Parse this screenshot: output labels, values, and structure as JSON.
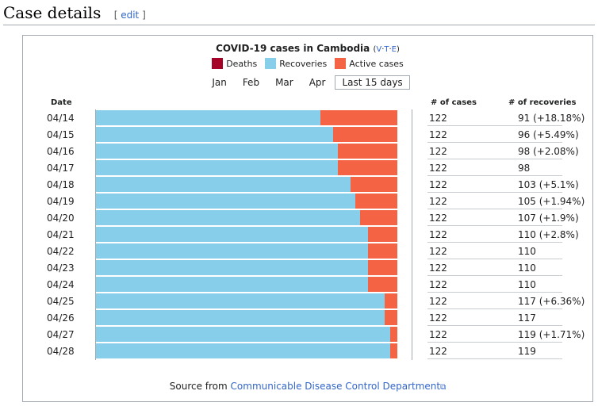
{
  "section": {
    "heading": "Case details",
    "edit_open": "[",
    "edit_label": "edit",
    "edit_close": "]"
  },
  "chart_data": {
    "type": "bar",
    "title": "COVID-19 cases in Cambodia",
    "vte": [
      "V",
      "T",
      "E"
    ],
    "legend": [
      {
        "name": "Deaths",
        "color": "#a50026"
      },
      {
        "name": "Recoveries",
        "color": "#87ceeb"
      },
      {
        "name": "Active cases",
        "color": "#f56345"
      }
    ],
    "tabs": [
      "Jan",
      "Feb",
      "Mar",
      "Apr",
      "Last 15 days"
    ],
    "active_tab": "Last 15 days",
    "columns": {
      "date": "Date",
      "cases": "# of cases",
      "recoveries": "# of recoveries"
    },
    "rows": [
      {
        "date": "04/14",
        "cases": 122,
        "recoveries": 91,
        "recoveries_label": "91 (+18.18%)"
      },
      {
        "date": "04/15",
        "cases": 122,
        "recoveries": 96,
        "recoveries_label": "96 (+5.49%)"
      },
      {
        "date": "04/16",
        "cases": 122,
        "recoveries": 98,
        "recoveries_label": "98 (+2.08%)"
      },
      {
        "date": "04/17",
        "cases": 122,
        "recoveries": 98,
        "recoveries_label": "98"
      },
      {
        "date": "04/18",
        "cases": 122,
        "recoveries": 103,
        "recoveries_label": "103 (+5.1%)"
      },
      {
        "date": "04/19",
        "cases": 122,
        "recoveries": 105,
        "recoveries_label": "105 (+1.94%)"
      },
      {
        "date": "04/20",
        "cases": 122,
        "recoveries": 107,
        "recoveries_label": "107 (+1.9%)"
      },
      {
        "date": "04/21",
        "cases": 122,
        "recoveries": 110,
        "recoveries_label": "110 (+2.8%)"
      },
      {
        "date": "04/22",
        "cases": 122,
        "recoveries": 110,
        "recoveries_label": "110"
      },
      {
        "date": "04/23",
        "cases": 122,
        "recoveries": 110,
        "recoveries_label": "110"
      },
      {
        "date": "04/24",
        "cases": 122,
        "recoveries": 110,
        "recoveries_label": "110"
      },
      {
        "date": "04/25",
        "cases": 122,
        "recoveries": 117,
        "recoveries_label": "117 (+6.36%)"
      },
      {
        "date": "04/26",
        "cases": 122,
        "recoveries": 117,
        "recoveries_label": "117"
      },
      {
        "date": "04/27",
        "cases": 122,
        "recoveries": 119,
        "recoveries_label": "119 (+1.71%)"
      },
      {
        "date": "04/28",
        "cases": 122,
        "recoveries": 119,
        "recoveries_label": "119"
      }
    ],
    "source_prefix": "Source from",
    "source_link": "Communicable Disease Control Department"
  }
}
